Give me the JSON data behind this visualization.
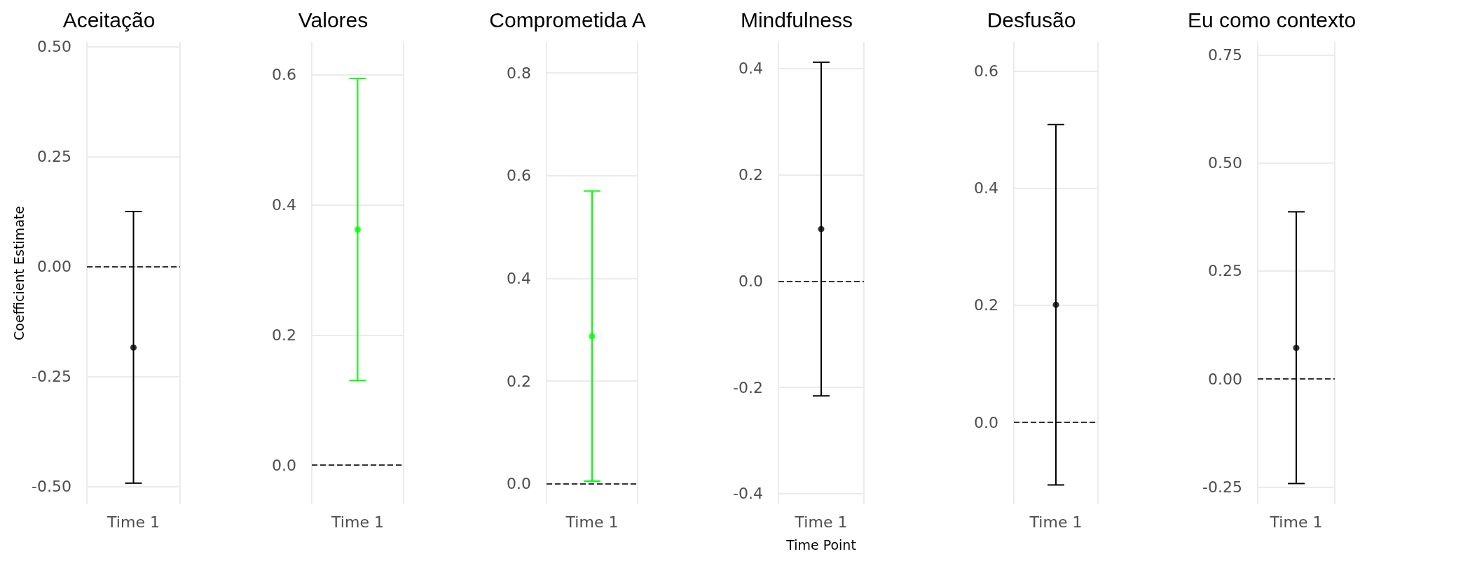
{
  "chart_data": [
    {
      "type": "scatter",
      "title": "Aceitação",
      "ylabel": "Coefficient Estimate",
      "categories": [
        "Time 1"
      ],
      "marker": "circle",
      "grid": true,
      "series": [
        {
          "color": "#000000",
          "values": [
            -0.184
          ],
          "errors": [
            [
              -0.492,
              0.125
            ]
          ]
        }
      ],
      "ylim": [
        -0.54,
        0.51
      ],
      "yticks": [
        {
          "value": -0.5,
          "label": "-0.50"
        },
        -0.25,
        {
          "value": 0,
          "label": "0.00"
        },
        0.25,
        {
          "value": 0.5,
          "label": "0.50"
        }
      ],
      "ref_lines": [
        {
          "axis": "y",
          "value": 0,
          "color": "#333333",
          "line_style": "dashed"
        }
      ]
    },
    {
      "type": "scatter",
      "title": "Valores",
      "categories": [
        "Time 1"
      ],
      "marker": "circle",
      "grid": true,
      "series": [
        {
          "color": "#00ff00",
          "values": [
            0.362
          ],
          "errors": [
            [
              0.13,
              0.594
            ]
          ]
        }
      ],
      "ylim": [
        -0.06,
        0.65
      ],
      "yticks": [
        {
          "value": 0,
          "label": "0.0"
        },
        0.2,
        0.4,
        0.6
      ],
      "ref_lines": [
        {
          "axis": "y",
          "value": 0,
          "color": "#333333",
          "line_style": "dashed"
        }
      ]
    },
    {
      "type": "scatter",
      "title": "Comprometida A",
      "categories": [
        "Time 1"
      ],
      "marker": "circle",
      "grid": true,
      "series": [
        {
          "color": "#00ff00",
          "values": [
            0.287
          ],
          "errors": [
            [
              0.005,
              0.57
            ]
          ]
        }
      ],
      "ylim": [
        -0.04,
        0.86
      ],
      "yticks": [
        {
          "value": 0,
          "label": "0.0"
        },
        0.2,
        0.4,
        0.6,
        0.8
      ],
      "ref_lines": [
        {
          "axis": "y",
          "value": 0,
          "color": "#333333",
          "line_style": "dashed"
        }
      ]
    },
    {
      "type": "scatter",
      "title": "Mindfulness",
      "xlabel": "Time Point",
      "categories": [
        "Time 1"
      ],
      "marker": "circle",
      "grid": true,
      "series": [
        {
          "color": "#000000",
          "values": [
            0.098
          ],
          "errors": [
            [
              -0.216,
              0.412
            ]
          ]
        }
      ],
      "ylim": [
        -0.42,
        0.45
      ],
      "yticks": [
        -0.4,
        -0.2,
        {
          "value": 0,
          "label": "0.0"
        },
        0.2,
        0.4
      ],
      "ref_lines": [
        {
          "axis": "y",
          "value": 0,
          "color": "#333333",
          "line_style": "dashed"
        }
      ]
    },
    {
      "type": "scatter",
      "title": "Desfusão",
      "categories": [
        "Time 1"
      ],
      "marker": "circle",
      "grid": true,
      "series": [
        {
          "color": "#000000",
          "values": [
            0.201
          ],
          "errors": [
            [
              -0.107,
              0.509
            ]
          ]
        }
      ],
      "ylim": [
        -0.14,
        0.65
      ],
      "yticks": [
        {
          "value": 0,
          "label": "0.0"
        },
        0.2,
        0.4,
        0.6
      ],
      "ref_lines": [
        {
          "axis": "y",
          "value": 0,
          "color": "#333333",
          "line_style": "dashed"
        }
      ]
    },
    {
      "type": "scatter",
      "title": "Eu como contexto",
      "categories": [
        "Time 1"
      ],
      "marker": "circle",
      "grid": true,
      "series": [
        {
          "color": "#000000",
          "values": [
            0.072
          ],
          "errors": [
            [
              -0.242,
              0.387
            ]
          ]
        }
      ],
      "ylim": [
        -0.29,
        0.78
      ],
      "yticks": [
        -0.25,
        {
          "value": 0,
          "label": "0.00"
        },
        0.25,
        {
          "value": 0.5,
          "label": "0.50"
        },
        0.75
      ],
      "ref_lines": [
        {
          "axis": "y",
          "value": 0,
          "color": "#333333",
          "line_style": "dashed"
        }
      ]
    }
  ]
}
